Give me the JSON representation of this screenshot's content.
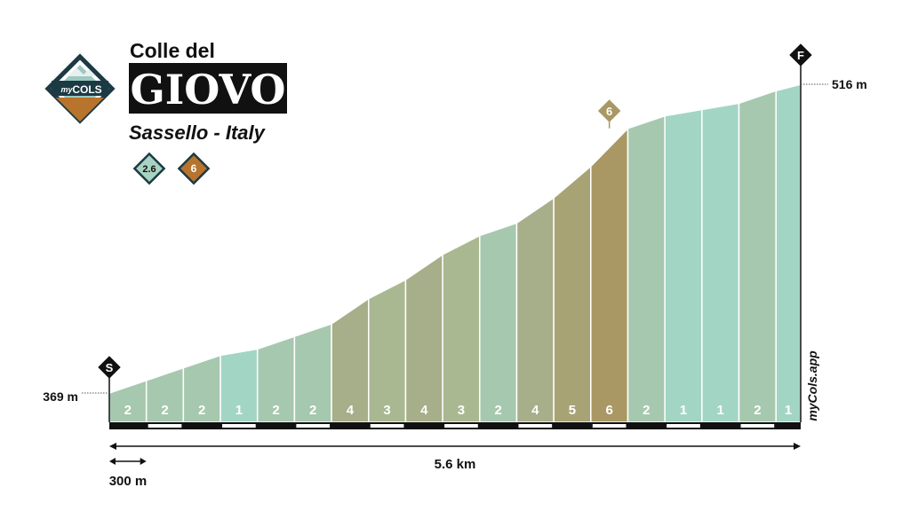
{
  "header": {
    "title_line1": "Colle del",
    "col_name": "GIOVO",
    "location": "Sassello - Italy",
    "logo_text_small": "my",
    "logo_text_big": "COLS",
    "badges": [
      {
        "label": "2.6",
        "color": "#a8d3c2"
      },
      {
        "label": "6",
        "color": "#b8742c"
      }
    ]
  },
  "brand": "myCols.app",
  "markers": {
    "start": "S",
    "finish": "F",
    "max_gradient": "6"
  },
  "colors": {
    "g1": "#a3d5c5",
    "g2": "#a6c8ae",
    "g3": "#a9b890",
    "g4": "#a7ae8a",
    "g5": "#a8a375",
    "g6": "#a99864",
    "finish_marker": "#111111",
    "max_marker": "#a99864"
  },
  "chart_data": {
    "type": "area",
    "title": "Colle del GIOVO",
    "start_elevation_label": "369 m",
    "end_elevation_label": "516 m",
    "distance_label": "5.6 km",
    "segment_length_label": "300 m",
    "x_unit": "m",
    "y_unit": "m",
    "x": [
      0,
      300,
      600,
      900,
      1200,
      1500,
      1800,
      2100,
      2400,
      2700,
      3000,
      3300,
      3600,
      3900,
      4200,
      4500,
      4800,
      5100,
      5400,
      5600
    ],
    "elevation": [
      369,
      375,
      381,
      387,
      390,
      396,
      402,
      414,
      423,
      435,
      444,
      450,
      462,
      477,
      495,
      501,
      504,
      507,
      513,
      516
    ],
    "segment_gradients": [
      2,
      2,
      2,
      1,
      2,
      2,
      4,
      3,
      4,
      3,
      2,
      4,
      5,
      6,
      2,
      1,
      1,
      2,
      1
    ],
    "xlim": [
      0,
      5600
    ],
    "ylim": [
      360,
      530
    ]
  }
}
